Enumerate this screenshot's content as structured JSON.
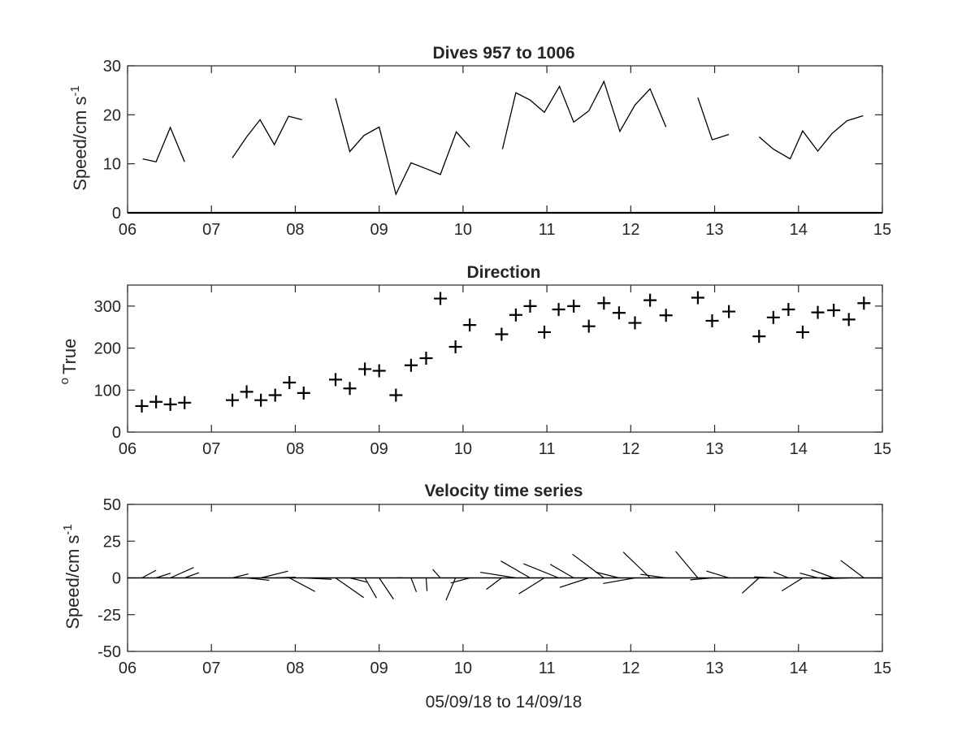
{
  "chart_data": [
    {
      "type": "line",
      "title": "Dives 957 to 1006",
      "ylabel_main": "Speed/cm s",
      "ylabel_sup": "-1",
      "xlabel": "",
      "xlim": [
        6,
        15
      ],
      "ylim": [
        0,
        30
      ],
      "xticks": [
        "06",
        "07",
        "08",
        "09",
        "10",
        "11",
        "12",
        "13",
        "14",
        "15"
      ],
      "yticks": [
        "0",
        "10",
        "20",
        "30"
      ],
      "grid": false,
      "segments": [
        {
          "x": [
            6.18,
            6.34,
            6.51,
            6.68
          ],
          "y": [
            11,
            10.4,
            17.4,
            10.4
          ]
        },
        {
          "x": [
            7.25,
            7.42,
            7.58,
            7.75,
            7.92,
            8.08
          ],
          "y": [
            11.2,
            15.5,
            19,
            13.9,
            19.7,
            19
          ]
        },
        {
          "x": [
            8.48,
            8.65,
            8.82,
            9.0,
            9.2,
            9.38,
            9.56,
            9.73,
            9.92,
            10.08
          ],
          "y": [
            23.4,
            12.5,
            15.8,
            17.5,
            3.8,
            10.2,
            9.0,
            7.8,
            16.5,
            13.4
          ]
        },
        {
          "x": [
            10.47,
            10.63,
            10.8,
            10.97,
            11.15,
            11.32,
            11.5,
            11.68,
            11.87,
            12.05,
            12.23,
            12.42
          ],
          "y": [
            13,
            24.5,
            23,
            20.5,
            25.8,
            18.5,
            20.8,
            26.8,
            16.6,
            22,
            25.3,
            17.5
          ]
        },
        {
          "x": [
            12.8,
            12.97,
            13.17
          ],
          "y": [
            23.5,
            14.9,
            16
          ]
        },
        {
          "x": [
            13.53,
            13.7,
            13.9,
            14.05,
            14.23,
            14.4,
            14.58,
            14.77
          ],
          "y": [
            15.5,
            13,
            11,
            16.7,
            12.6,
            16.2,
            18.8,
            19.8
          ]
        }
      ]
    },
    {
      "type": "scatter",
      "title": "Direction",
      "ylabel_main": "True",
      "ylabel_sup": "o",
      "xlabel": "",
      "xlim": [
        6,
        15
      ],
      "ylim": [
        0,
        350
      ],
      "xticks": [
        "06",
        "07",
        "08",
        "09",
        "10",
        "11",
        "12",
        "13",
        "14",
        "15"
      ],
      "yticks": [
        "0",
        "100",
        "200",
        "300"
      ],
      "marker": "+",
      "grid": false,
      "x": [
        6.17,
        6.34,
        6.51,
        6.68,
        7.25,
        7.42,
        7.59,
        7.76,
        7.93,
        8.1,
        8.48,
        8.65,
        8.83,
        9.0,
        9.2,
        9.38,
        9.56,
        9.73,
        9.91,
        10.08,
        10.46,
        10.63,
        10.8,
        10.97,
        11.14,
        11.32,
        11.5,
        11.68,
        11.86,
        12.05,
        12.23,
        12.42,
        12.8,
        12.97,
        13.17,
        13.53,
        13.7,
        13.88,
        14.05,
        14.23,
        14.42,
        14.6,
        14.78
      ],
      "y": [
        62,
        72,
        66,
        70,
        76,
        96,
        76,
        88,
        118,
        93,
        125,
        104,
        150,
        146,
        88,
        159,
        176,
        318,
        203,
        255,
        233,
        279,
        300,
        238,
        292,
        300,
        252,
        307,
        284,
        260,
        314,
        278,
        320,
        265,
        287,
        228,
        273,
        292,
        238,
        285,
        290,
        268,
        307
      ]
    },
    {
      "type": "quiver",
      "title": "Velocity time series",
      "ylabel_main": "Speed/cm s",
      "ylabel_sup": "-1",
      "xlabel": "05/09/18 to 14/09/18",
      "xlim": [
        6,
        15
      ],
      "ylim": [
        -50,
        50
      ],
      "xticks": [
        "06",
        "07",
        "08",
        "09",
        "10",
        "11",
        "12",
        "13",
        "14",
        "15"
      ],
      "yticks": [
        "-50",
        "-25",
        "0",
        "25",
        "50"
      ],
      "grid": false,
      "x": [
        6.17,
        6.34,
        6.51,
        6.68,
        7.25,
        7.42,
        7.59,
        7.76,
        7.93,
        8.1,
        8.48,
        8.65,
        8.83,
        9.0,
        9.2,
        9.38,
        9.56,
        9.73,
        9.91,
        10.08,
        10.46,
        10.63,
        10.8,
        10.97,
        11.14,
        11.32,
        11.5,
        11.68,
        11.86,
        12.05,
        12.23,
        12.42,
        12.8,
        12.97,
        13.17,
        13.53,
        13.7,
        13.88,
        14.05,
        14.23,
        14.42,
        14.6,
        14.78
      ],
      "speed": [
        11,
        10.4,
        17.4,
        10.4,
        11.2,
        15.5,
        19,
        13.9,
        19.7,
        19,
        23.4,
        12.5,
        15.8,
        17.5,
        3.8,
        10.2,
        9.0,
        7.8,
        16.5,
        13.4,
        13,
        24.5,
        23,
        20.5,
        25.8,
        18.5,
        20.8,
        26.8,
        16.6,
        22,
        25.3,
        17.5,
        23.5,
        14.9,
        16,
        15.5,
        13,
        11,
        16.7,
        12.6,
        16.2,
        18.8,
        19.8
      ],
      "direction_deg": [
        62,
        72,
        66,
        70,
        76,
        96,
        76,
        88,
        118,
        93,
        125,
        104,
        150,
        146,
        88,
        159,
        176,
        318,
        203,
        255,
        233,
        279,
        300,
        238,
        292,
        300,
        252,
        307,
        284,
        260,
        314,
        278,
        320,
        265,
        287,
        228,
        273,
        292,
        238,
        285,
        290,
        268,
        307
      ]
    }
  ]
}
